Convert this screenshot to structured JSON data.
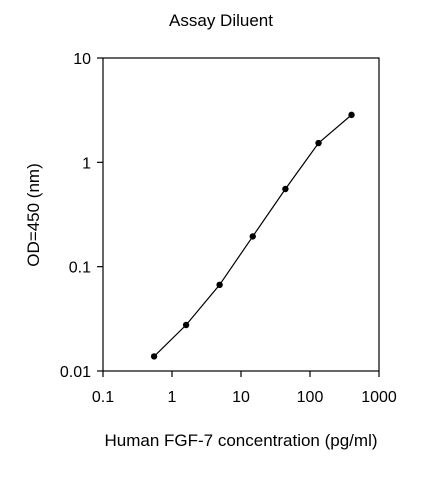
{
  "chart_data": {
    "type": "line",
    "title": "Assay Diluent",
    "xlabel": "Human FGF-7 concentration (pg/ml)",
    "ylabel": "OD=450 (nm)",
    "xscale": "log",
    "yscale": "log",
    "xlim": [
      0.1,
      1000
    ],
    "ylim": [
      0.01,
      10
    ],
    "xticks": [
      0.1,
      1,
      10,
      100,
      1000
    ],
    "xtick_labels": [
      "0.1",
      "1",
      "10",
      "100",
      "1000"
    ],
    "yticks": [
      0.01,
      0.1,
      1,
      10
    ],
    "ytick_labels": [
      "0.01",
      "0.1",
      "1",
      "10"
    ],
    "grid": false,
    "legend": "none",
    "marker": "circle",
    "line_color": "#000000",
    "marker_color": "#000000",
    "series": [
      {
        "x": [
          0.55,
          1.6,
          4.9,
          14.8,
          44,
          133,
          400
        ],
        "y": [
          0.0138,
          0.0276,
          0.067,
          0.195,
          0.555,
          1.53,
          2.85
        ]
      }
    ]
  }
}
